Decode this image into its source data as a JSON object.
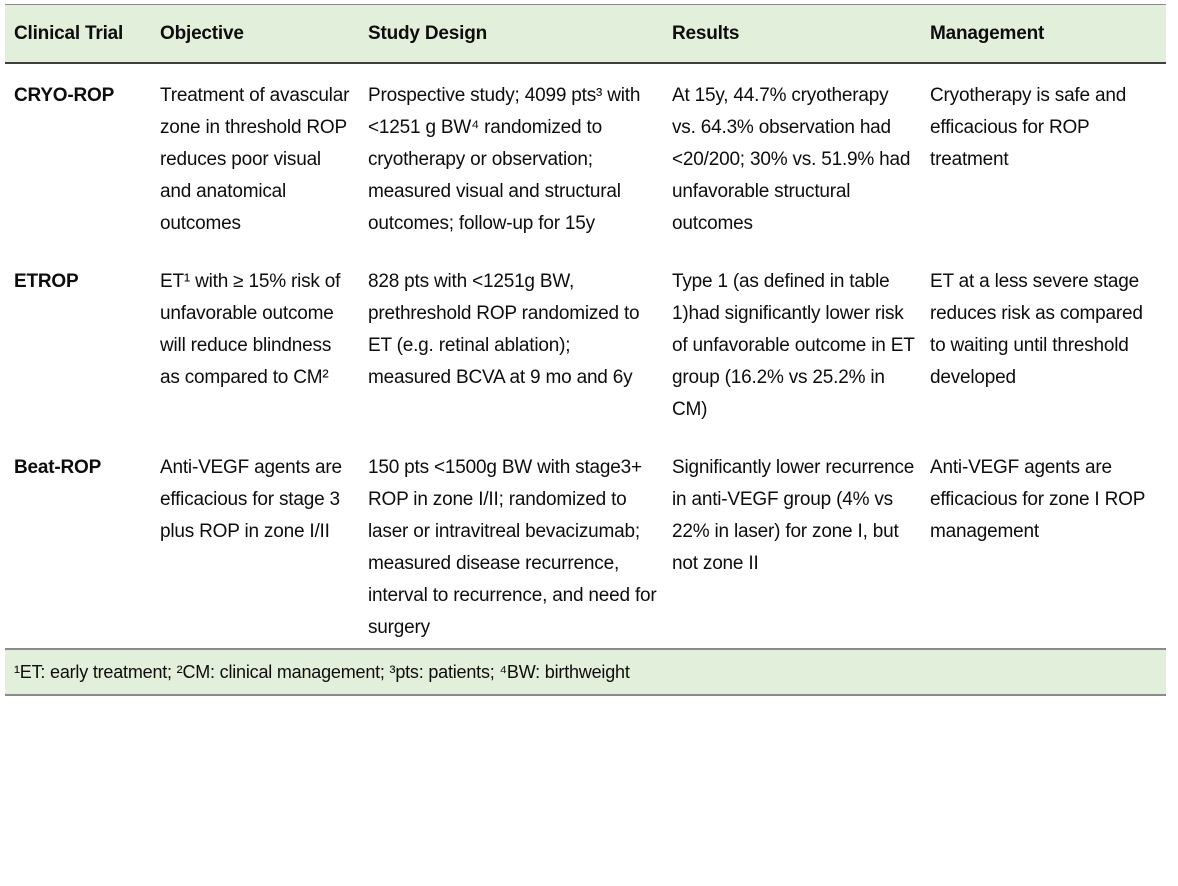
{
  "colors": {
    "band_green": "#e2efda",
    "border_gray": "#8a8a8a",
    "header_rule_dark": "#3f3f3f",
    "text": "#0d0d0d"
  },
  "table": {
    "columns": [
      "Clinical Trial",
      "Objective",
      "Study Design",
      "Results",
      "Management"
    ],
    "rows": [
      {
        "trial": "CRYO-ROP",
        "objective": "Treatment of avascular zone in threshold ROP reduces poor visual and anatomical outcomes",
        "study_design": "Prospective study; 4099 pts³ with <1251 g BW⁴ randomized to cryotherapy or observation; measured visual and structural outcomes; follow-up for 15y",
        "results": "At 15y, 44.7% cryotherapy vs. 64.3% observation had <20/200; 30% vs. 51.9% had unfavorable structural outcomes",
        "management": "Cryotherapy is safe and efficacious for ROP treatment"
      },
      {
        "trial": "ETROP",
        "objective": "ET¹ with ≥ 15% risk of unfavorable outcome will reduce blindness as compared to CM²",
        "study_design": "828 pts with <1251g BW, prethreshold ROP randomized to ET (e.g. retinal ablation); measured BCVA at 9 mo and 6y",
        "results": "Type 1 (as defined in table 1)had significantly lower risk of unfavorable outcome in ET group (16.2% vs 25.2% in CM)",
        "management": "ET at a less severe stage reduces risk as compared to waiting until threshold developed"
      },
      {
        "trial": "Beat-ROP",
        "objective": "Anti-VEGF agents are efficacious for stage 3 plus ROP in zone I/II",
        "study_design": "150 pts <1500g BW with stage3+ ROP in zone I/II; randomized to laser or intravitreal bevacizumab; measured disease recurrence, interval to recurrence, and need for surgery",
        "results": "Significantly lower recurrence in anti-VEGF group (4% vs 22% in laser) for zone I, but not zone II",
        "management": "Anti-VEGF agents are efficacious for zone I ROP management"
      }
    ],
    "footnote": "¹ET: early treatment; ²CM: clinical management; ³pts: patients; ⁴BW: birthweight"
  }
}
